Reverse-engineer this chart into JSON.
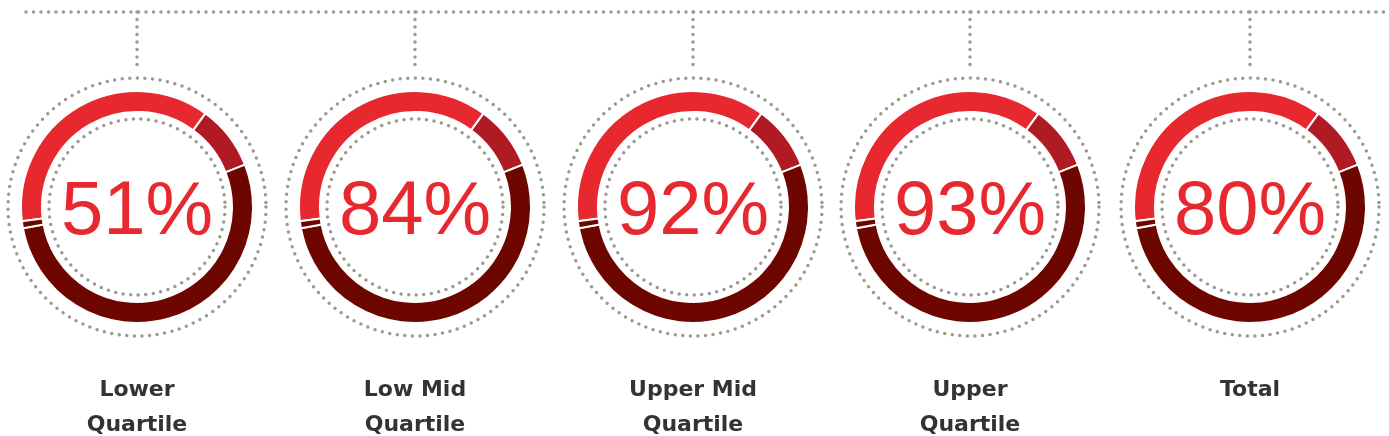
{
  "chart_data": [
    {
      "type": "donut",
      "title": "Lower Quartile",
      "categories": [
        null,
        null,
        null,
        null
      ],
      "values": [
        37,
        9,
        53,
        1
      ],
      "colors": [
        "#e8282f",
        "#b01a22",
        "#6e0600",
        "#6e0600"
      ],
      "annotations": [
        "51%"
      ]
    },
    {
      "type": "donut",
      "title": "Low Mid Quartile",
      "categories": [
        null,
        null,
        null,
        null
      ],
      "values": [
        37,
        9,
        53,
        1
      ],
      "colors": [
        "#e8282f",
        "#b01a22",
        "#6e0600",
        "#6e0600"
      ],
      "annotations": [
        "84%"
      ]
    },
    {
      "type": "donut",
      "title": "Upper Mid Quartile",
      "categories": [
        null,
        null,
        null,
        null
      ],
      "values": [
        37,
        9,
        53,
        1
      ],
      "colors": [
        "#e8282f",
        "#b01a22",
        "#6e0600",
        "#6e0600"
      ],
      "annotations": [
        "92%"
      ]
    },
    {
      "type": "donut",
      "title": "Upper Quartile",
      "categories": [
        null,
        null,
        null,
        null
      ],
      "values": [
        37,
        9,
        53,
        1
      ],
      "colors": [
        "#e8282f",
        "#b01a22",
        "#6e0600",
        "#6e0600"
      ],
      "annotations": [
        "93%"
      ]
    },
    {
      "type": "donut",
      "title": "Total",
      "categories": [
        null,
        null,
        null,
        null
      ],
      "values": [
        37,
        9,
        53,
        1
      ],
      "colors": [
        "#e8282f",
        "#b01a22",
        "#6e0600",
        "#6e0600"
      ],
      "annotations": [
        "80%"
      ]
    }
  ]
}
